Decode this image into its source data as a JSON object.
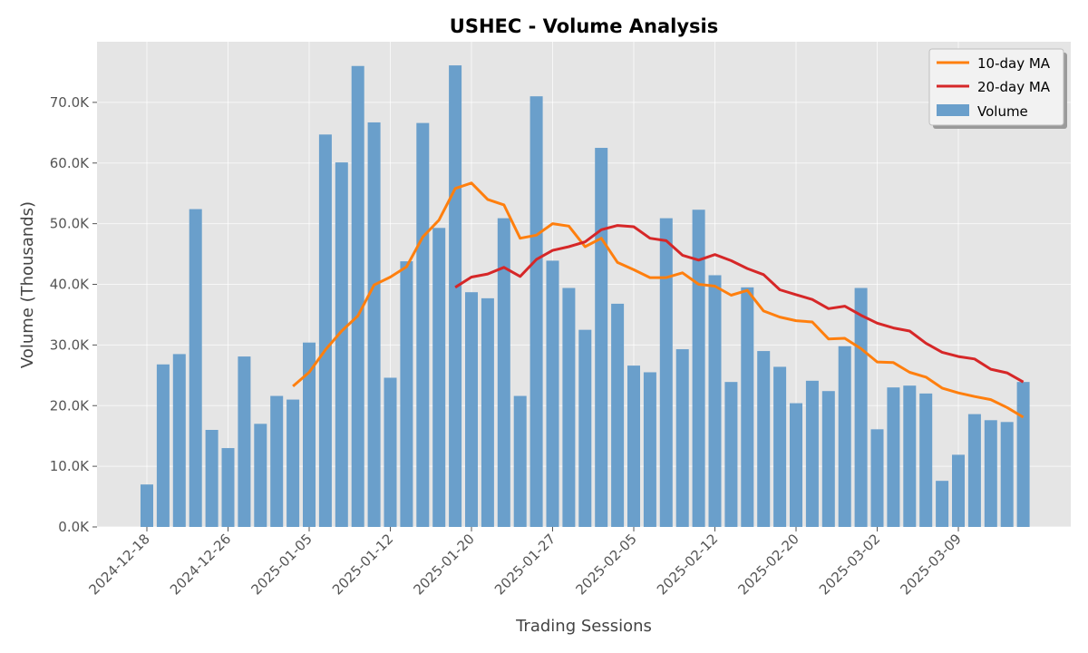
{
  "chart_data": {
    "type": "bar",
    "title": "USHEC - Volume Analysis",
    "xlabel": "Trading Sessions",
    "ylabel": "Volume (Thousands)",
    "ylim": [
      0,
      80000
    ],
    "y_ticks": [
      0,
      10000,
      20000,
      30000,
      40000,
      50000,
      60000,
      70000
    ],
    "y_tick_labels": [
      "0.0K",
      "10.0K",
      "20.0K",
      "30.0K",
      "40.0K",
      "50.0K",
      "60.0K",
      "70.0K"
    ],
    "x_tick_labels": [
      "2024-12-18",
      "2024-12-26",
      "2025-01-05",
      "2025-01-12",
      "2025-01-20",
      "2025-01-27",
      "2025-02-05",
      "2025-02-12",
      "2025-02-20",
      "2025-03-02",
      "2025-03-09"
    ],
    "x_tick_positions": [
      0,
      5,
      10,
      15,
      20,
      25,
      30,
      35,
      40,
      45,
      50
    ],
    "grid": true,
    "legend_position": "top-right",
    "colors": {
      "volume": "#6a9fcb",
      "ma10": "#ff7f0e",
      "ma20": "#d62728",
      "plot_bg": "#e5e5e5",
      "grid": "#ffffff"
    },
    "series": [
      {
        "name": "Volume",
        "type": "bar",
        "values": [
          7000,
          26800,
          28500,
          52400,
          16000,
          13000,
          28100,
          17000,
          21600,
          21000,
          30400,
          64700,
          60100,
          76000,
          66700,
          24600,
          43800,
          66600,
          49300,
          76100,
          38700,
          37700,
          50900,
          21600,
          71000,
          43900,
          39400,
          32500,
          62500,
          36800,
          26600,
          25500,
          50900,
          29300,
          52300,
          41500,
          23900,
          39500,
          29000,
          26400,
          20400,
          24100,
          22400,
          29800,
          39400,
          16100,
          23000,
          23300,
          22000,
          7600,
          11900,
          18600,
          17600,
          17300,
          23900
        ]
      },
      {
        "name": "10-day MA",
        "type": "line",
        "start_index": 9,
        "values": [
          23200,
          25500,
          29200,
          32300,
          34800,
          39900,
          41200,
          42900,
          47800,
          50600,
          55800,
          56700,
          54000,
          53100,
          47600,
          48100,
          50000,
          49600,
          46200,
          47600,
          43600,
          42400,
          41100,
          41100,
          41900,
          40000,
          39700,
          38200,
          39000,
          35600,
          34600,
          34000,
          33800,
          31000,
          31100,
          29400,
          27200,
          27100,
          25500,
          24700,
          22900,
          22100,
          21500,
          21000,
          19700,
          18100
        ]
      },
      {
        "name": "20-day MA",
        "type": "line",
        "start_index": 19,
        "values": [
          39500,
          41200,
          41700,
          42800,
          41300,
          44100,
          45600,
          46200,
          47000,
          49000,
          49700,
          49500,
          47600,
          47200,
          44800,
          44000,
          44900,
          43900,
          42600,
          41600,
          39100,
          38300,
          37500,
          36000,
          36400,
          34900,
          33600,
          32800,
          32300,
          30300,
          28800,
          28100,
          27700,
          26000,
          25400,
          23900
        ]
      }
    ]
  }
}
